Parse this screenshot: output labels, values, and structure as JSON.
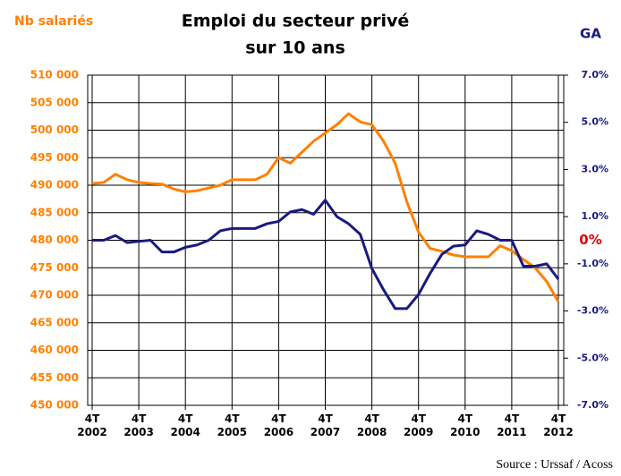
{
  "chart_data": {
    "type": "line",
    "title": [
      "Emploi du secteur privé",
      "sur 10 ans"
    ],
    "y_label": "Nb salariés",
    "y2_label": "GA",
    "annotations": [
      {
        "text": "0%",
        "y2": 0,
        "color": "#e00000"
      }
    ],
    "source": "Source : Urssaf / Acoss",
    "x": [
      2002,
      2002.25,
      2002.5,
      2002.75,
      2003,
      2003.25,
      2003.5,
      2003.75,
      2004,
      2004.25,
      2004.5,
      2004.75,
      2005,
      2005.25,
      2005.5,
      2005.75,
      2006,
      2006.25,
      2006.5,
      2006.75,
      2007,
      2007.25,
      2007.5,
      2007.75,
      2008,
      2008.25,
      2008.5,
      2008.75,
      2009,
      2009.25,
      2009.5,
      2009.75,
      2010,
      2010.25,
      2010.5,
      2010.75,
      2011,
      2011.25,
      2011.5,
      2011.75,
      2012
    ],
    "xlim": [
      2002,
      2012
    ],
    "xticks": [
      {
        "value": 2002,
        "label": "4T 2002"
      },
      {
        "value": 2003,
        "label": "4T 2003"
      },
      {
        "value": 2004,
        "label": "4T 2004"
      },
      {
        "value": 2005,
        "label": "4T 2005"
      },
      {
        "value": 2006,
        "label": "4T 2006"
      },
      {
        "value": 2007,
        "label": "4T 2007"
      },
      {
        "value": 2008,
        "label": "4T 2008"
      },
      {
        "value": 2009,
        "label": "4T 2009"
      },
      {
        "value": 2010,
        "label": "4T 2010"
      },
      {
        "value": 2011,
        "label": "4T 2011"
      },
      {
        "value": 2012,
        "label": "4T 2012"
      }
    ],
    "ylim": [
      450000,
      510000
    ],
    "yticks": [
      {
        "value": 450000,
        "label": "450 000"
      },
      {
        "value": 455000,
        "label": "455 000"
      },
      {
        "value": 460000,
        "label": "460 000"
      },
      {
        "value": 465000,
        "label": "465 000"
      },
      {
        "value": 470000,
        "label": "470 000"
      },
      {
        "value": 475000,
        "label": "475 000"
      },
      {
        "value": 480000,
        "label": "480 000"
      },
      {
        "value": 485000,
        "label": "485 000"
      },
      {
        "value": 490000,
        "label": "490 000"
      },
      {
        "value": 495000,
        "label": "495 000"
      },
      {
        "value": 500000,
        "label": "500 000"
      },
      {
        "value": 505000,
        "label": "505 000"
      },
      {
        "value": 510000,
        "label": "510 000"
      }
    ],
    "y2lim": [
      -7,
      7
    ],
    "y2ticks": [
      {
        "value": 7,
        "label": "7.0%"
      },
      {
        "value": 5,
        "label": "5.0%"
      },
      {
        "value": 3,
        "label": "3.0%"
      },
      {
        "value": 1,
        "label": "1.0%"
      },
      {
        "value": -1,
        "label": "-1.0%"
      },
      {
        "value": -3,
        "label": "-3.0%"
      },
      {
        "value": -5,
        "label": "-5.0%"
      },
      {
        "value": -7,
        "label": "-7.0%"
      }
    ],
    "grid": true,
    "series": [
      {
        "name": "Nb salariés",
        "color": "#ff8000",
        "axis": "y",
        "values": [
          490300,
          490500,
          492000,
          491000,
          490500,
          490300,
          490200,
          489300,
          488800,
          489000,
          489500,
          490000,
          491000,
          491000,
          491000,
          492000,
          495000,
          494000,
          496000,
          498000,
          499500,
          501000,
          503000,
          501500,
          501000,
          498000,
          494000,
          487000,
          481500,
          478500,
          478000,
          477300,
          477000,
          477000,
          477000,
          479000,
          478100,
          476500,
          475000,
          472500,
          468800
        ]
      },
      {
        "name": "GA",
        "color": "#1a1a80",
        "axis": "y2",
        "values": [
          0,
          0,
          0.2,
          -0.1,
          -0.05,
          0,
          -0.5,
          -0.5,
          -0.3,
          -0.2,
          0,
          0.4,
          0.5,
          0.5,
          0.5,
          0.7,
          0.8,
          1.2,
          1.3,
          1.1,
          1.7,
          1.0,
          0.7,
          0.25,
          -1.2,
          -2.1,
          -2.9,
          -2.9,
          -2.3,
          -1.4,
          -0.6,
          -0.25,
          -0.2,
          0.4,
          0.25,
          0,
          0,
          -1.1,
          -1.1,
          -1.0,
          -1.65
        ]
      }
    ]
  }
}
